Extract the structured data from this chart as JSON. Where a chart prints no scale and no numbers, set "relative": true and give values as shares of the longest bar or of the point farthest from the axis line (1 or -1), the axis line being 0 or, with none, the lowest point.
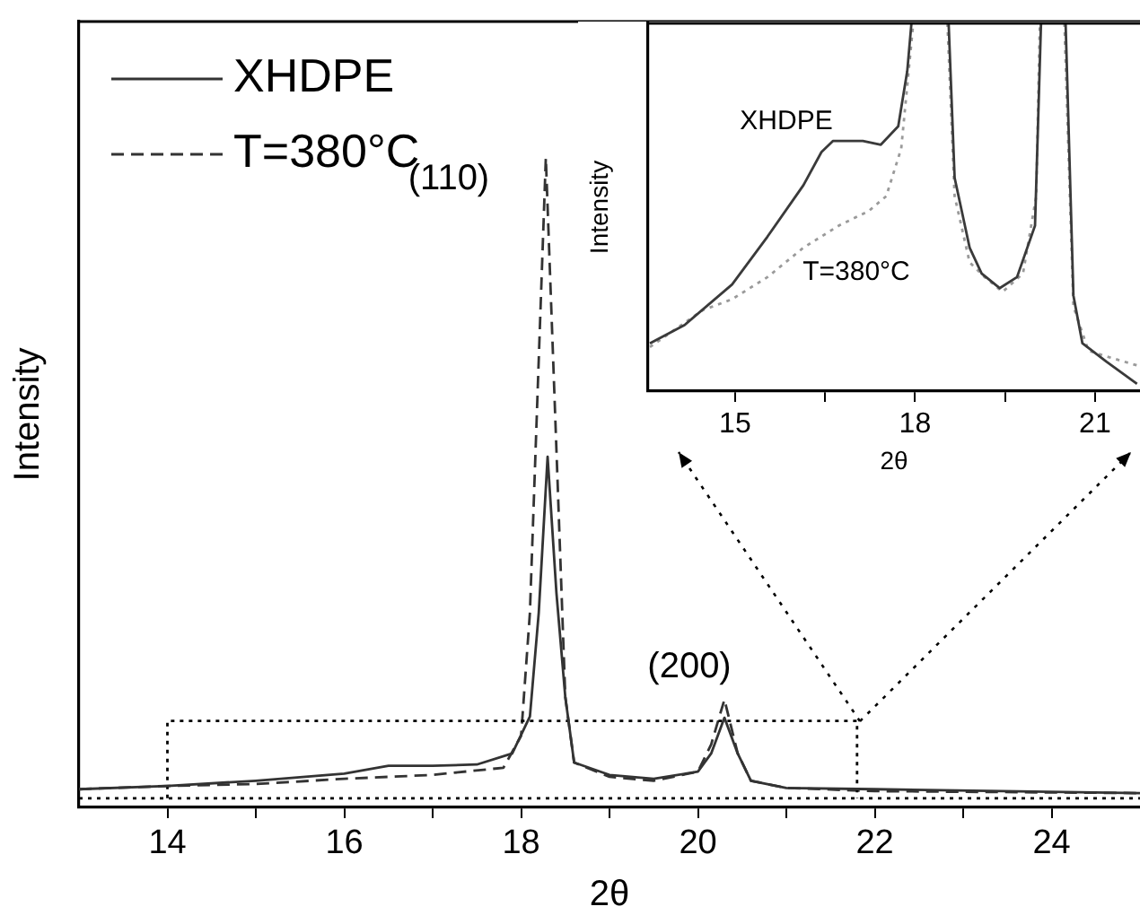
{
  "chart_data": [
    {
      "type": "line",
      "relative": true,
      "xlabel": "2θ",
      "ylabel": "Intensity",
      "xlim": [
        13,
        25
      ],
      "xticks": [
        14,
        {
          "value": 15,
          "label": null
        },
        16,
        {
          "value": 17,
          "label": null
        },
        18,
        {
          "value": 19,
          "label": null
        },
        20,
        {
          "value": 21,
          "label": null
        },
        22,
        {
          "value": 23,
          "label": null
        },
        24
      ],
      "legend": "top left",
      "grid": false,
      "annotations": [
        "(110)",
        "(200)"
      ],
      "ref_lines": [
        {
          "axis": "y",
          "value": 0.014,
          "line_style": "dotted",
          "color": "#000000"
        }
      ],
      "series": [
        {
          "name": "XHDPE",
          "color": "#333333",
          "line_style": "solid",
          "x": [
            13,
            14,
            15,
            16,
            16.5,
            17,
            17.5,
            17.9,
            18.1,
            18.2,
            18.3,
            18.4,
            18.5,
            18.6,
            19,
            19.5,
            20,
            20.15,
            20.3,
            20.45,
            20.6,
            21,
            22,
            25
          ],
          "values": [
            0.028,
            0.033,
            0.041,
            0.052,
            0.064,
            0.064,
            0.066,
            0.083,
            0.14,
            0.3,
            0.54,
            0.33,
            0.17,
            0.069,
            0.05,
            0.044,
            0.055,
            0.083,
            0.138,
            0.083,
            0.041,
            0.03,
            0.028,
            0.022
          ]
        },
        {
          "color": "#000000",
          "line_style": "dotted",
          "x": [
            14,
            14,
            21.8,
            21.8
          ],
          "values": [
            0.014,
            0.133,
            0.133,
            0.014
          ]
        },
        {
          "name": "T=380°C",
          "color": "#333333",
          "line_style": "dashed",
          "x": [
            13,
            14,
            15,
            16,
            17,
            17.8,
            18,
            18.1,
            18.2,
            18.28,
            18.4,
            18.5,
            18.6,
            19,
            19.5,
            20,
            20.15,
            20.3,
            20.45,
            20.6,
            21,
            22,
            25
          ],
          "values": [
            0.028,
            0.033,
            0.036,
            0.044,
            0.05,
            0.061,
            0.11,
            0.3,
            0.69,
            1,
            0.55,
            0.17,
            0.069,
            0.047,
            0.041,
            0.055,
            0.097,
            0.166,
            0.083,
            0.041,
            0.03,
            0.025,
            0.022
          ]
        }
      ]
    },
    {
      "type": "line",
      "relative": true,
      "xlabel": "2θ",
      "ylabel": "Intensity",
      "xlim": [
        13.55,
        21.75
      ],
      "xticks": [
        15,
        {
          "value": 16.5,
          "label": null
        },
        18,
        {
          "value": 19.5,
          "label": null
        },
        21
      ],
      "grid": false,
      "annotations": [
        "XHDPE",
        "T=380°C"
      ],
      "series": [
        {
          "color": "#3a3a3a",
          "line_style": "solid",
          "x": [
            13.58,
            14.16,
            14.95,
            15.54,
            16.14,
            16.44,
            16.63,
            17.13,
            17.43,
            17.72,
            17.87,
            17.94,
            18.25,
            18.56,
            18.66,
            18.91,
            19.11,
            19.41,
            19.7,
            20,
            20.1,
            20.3,
            20.51,
            20.64,
            20.79,
            21.19,
            21.7
          ],
          "values": [
            0.13,
            0.18,
            0.29,
            0.42,
            0.56,
            0.65,
            0.68,
            0.68,
            0.67,
            0.72,
            0.87,
            1,
            null,
            1,
            0.58,
            0.39,
            0.32,
            0.28,
            0.31,
            0.45,
            1,
            null,
            1,
            0.26,
            0.13,
            0.08,
            0.02
          ]
        },
        {
          "color": "#9a9a9a",
          "line_style": "dotted",
          "x": [
            13.58,
            14.46,
            14.95,
            15.54,
            16.14,
            16.73,
            17.23,
            17.52,
            17.77,
            17.97,
            18.25,
            18.54,
            18.66,
            18.91,
            19.16,
            19.46,
            19.8,
            20.02,
            20.08,
            20.3,
            20.49,
            20.64,
            20.89,
            21.28,
            21.7
          ],
          "values": [
            0.12,
            0.22,
            0.25,
            0.31,
            0.39,
            0.45,
            0.49,
            0.53,
            0.66,
            1,
            null,
            1,
            0.53,
            0.35,
            0.31,
            0.27,
            0.32,
            0.53,
            1,
            null,
            1,
            0.23,
            0.11,
            0.09,
            0.07
          ]
        }
      ]
    }
  ]
}
